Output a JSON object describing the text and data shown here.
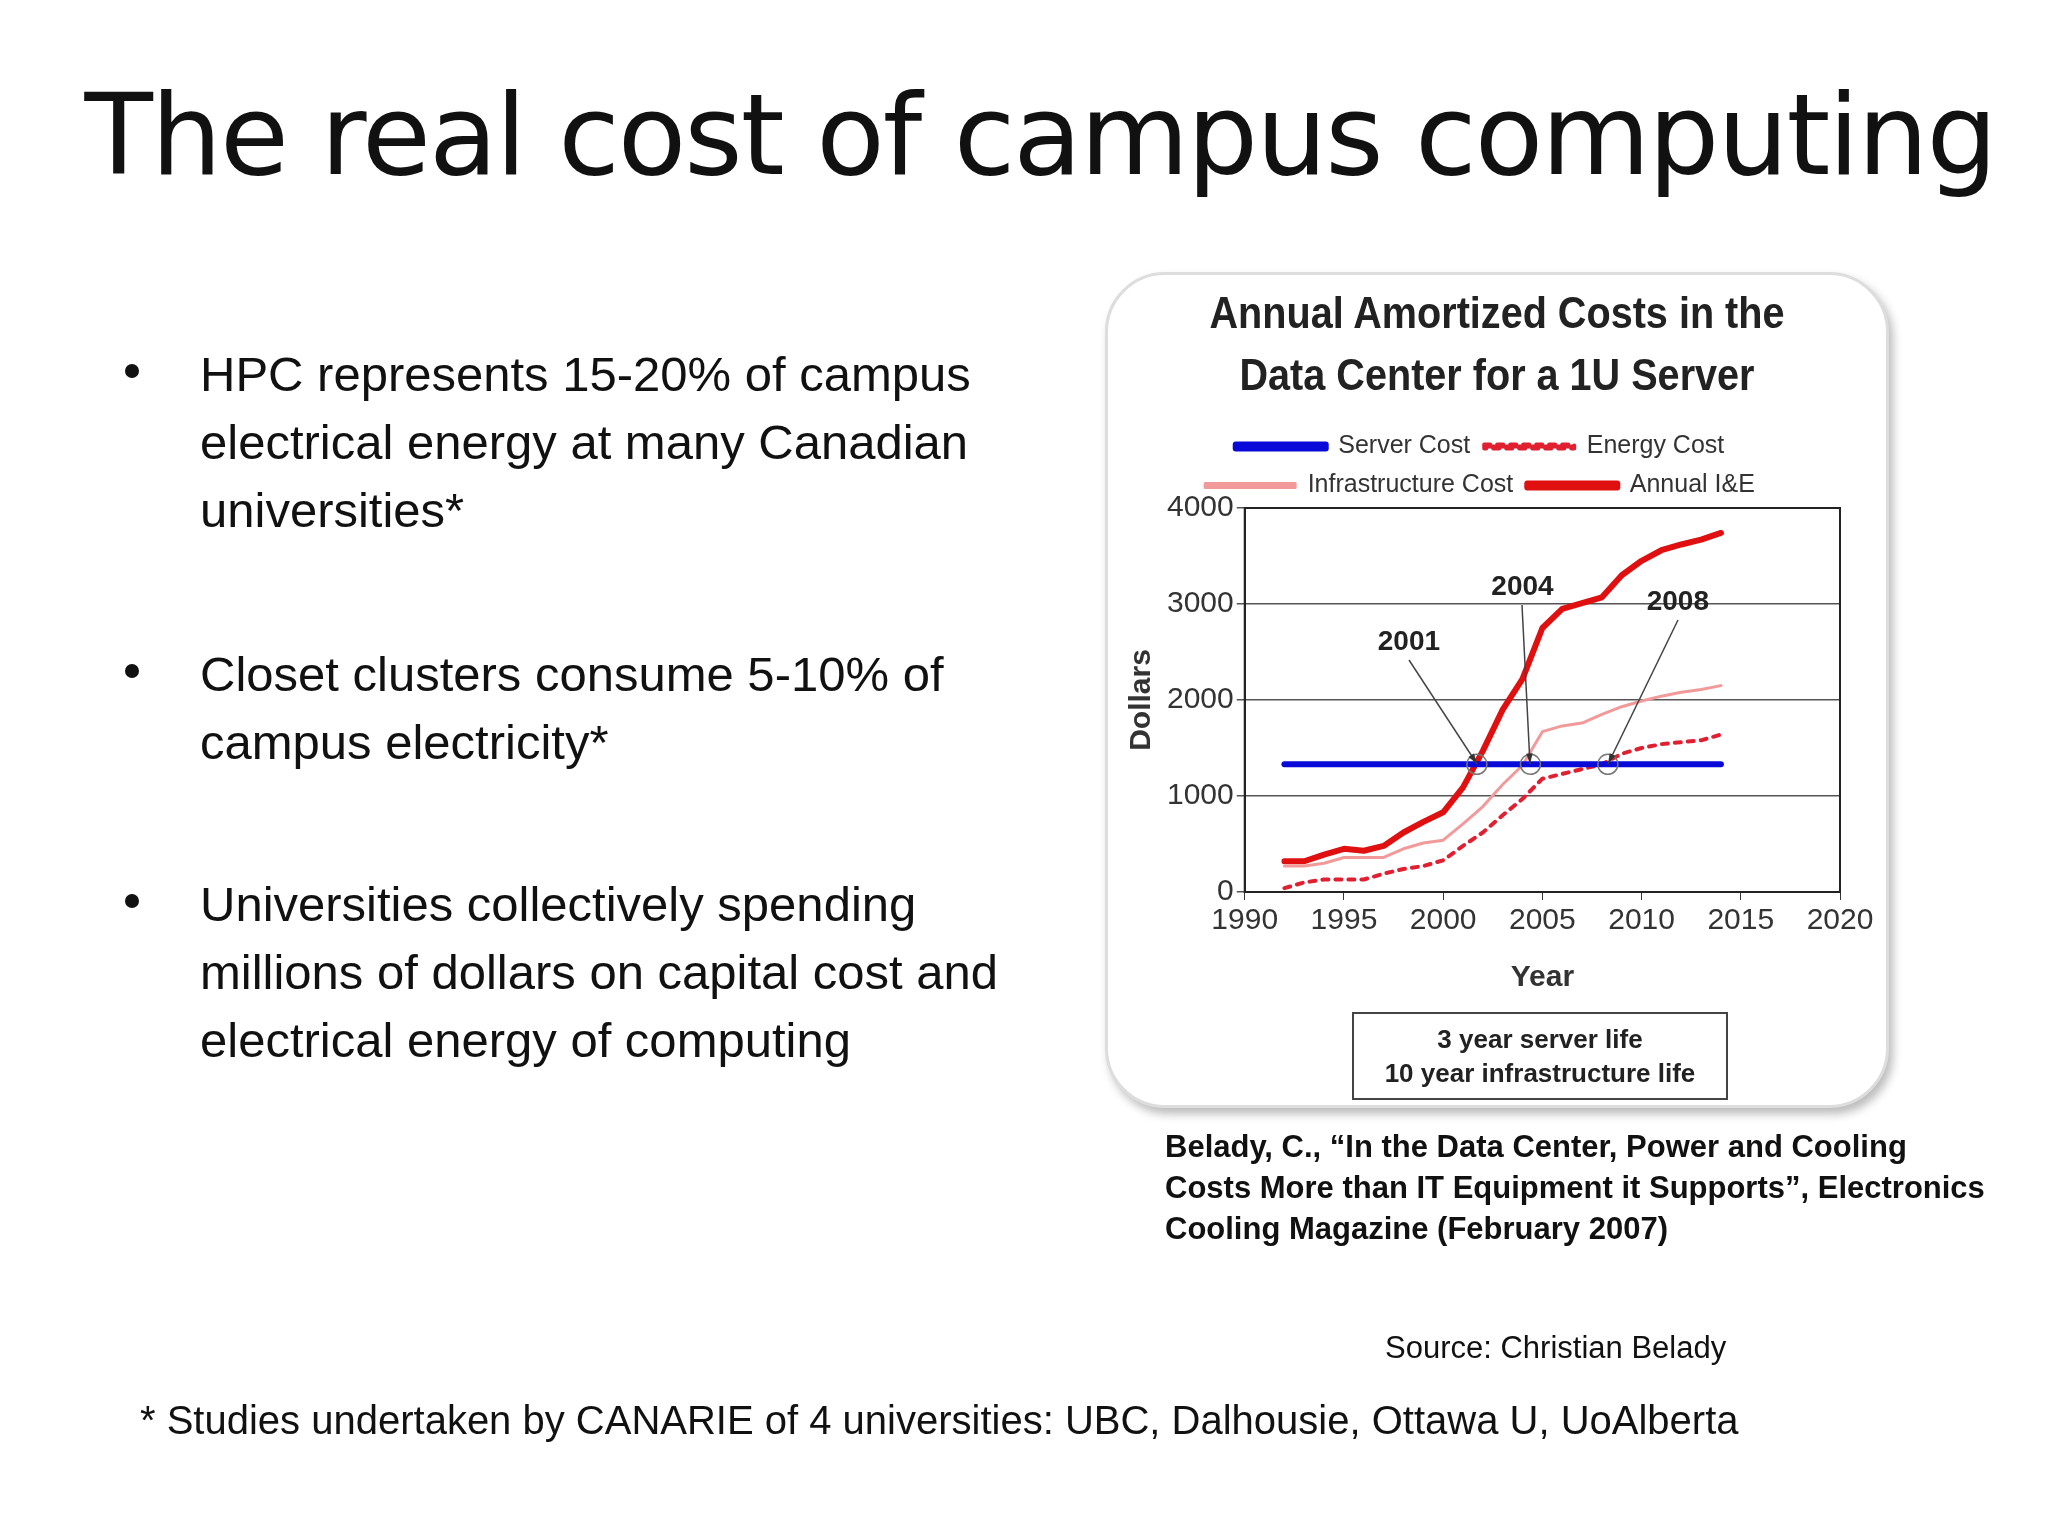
{
  "chart_data": {
    "type": "line",
    "title": "Annual Amortized Costs in the Data Center for a 1U Server",
    "xlabel": "Year",
    "ylabel": "Dollars",
    "x": [
      1992,
      1993,
      1994,
      1995,
      1996,
      1997,
      1998,
      1999,
      2000,
      2001,
      2002,
      2003,
      2004,
      2005,
      2006,
      2007,
      2008,
      2009,
      2010,
      2011,
      2012,
      2013,
      2014
    ],
    "series": [
      {
        "name": "Server Cost",
        "color": "#0a0ad8",
        "line_style": "solid",
        "values": [
          1330,
          1330,
          1330,
          1330,
          1330,
          1330,
          1330,
          1330,
          1330,
          1330,
          1330,
          1330,
          1330,
          1330,
          1330,
          1330,
          1330,
          1330,
          1330,
          1330,
          1330,
          1330,
          1330
        ]
      },
      {
        "name": "Energy Cost",
        "color": "#e02030",
        "line_style": "dotted",
        "values": [
          40,
          100,
          130,
          130,
          130,
          190,
          240,
          270,
          330,
          480,
          620,
          800,
          970,
          1180,
          1230,
          1280,
          1330,
          1440,
          1500,
          1540,
          1560,
          1580,
          1640
        ]
      },
      {
        "name": "Infrastructure Cost",
        "color": "#f29a9a",
        "line_style": "solid",
        "values": [
          270,
          270,
          300,
          360,
          360,
          360,
          450,
          510,
          540,
          710,
          890,
          1120,
          1320,
          1670,
          1730,
          1760,
          1850,
          1930,
          1990,
          2040,
          2080,
          2110,
          2150
        ]
      },
      {
        "name": "Annual I&E",
        "color": "#e01010",
        "line_style": "solid",
        "values": [
          320,
          320,
          390,
          450,
          430,
          480,
          620,
          730,
          830,
          1090,
          1470,
          1900,
          2220,
          2750,
          2950,
          3010,
          3070,
          3300,
          3450,
          3560,
          3620,
          3670,
          3740
        ]
      }
    ],
    "xlim": [
      1990,
      2020
    ],
    "xticks": [
      1990,
      1995,
      2000,
      2005,
      2010,
      2015,
      2020
    ],
    "ylim": [
      0,
      4000
    ],
    "yticks": [
      0,
      1000,
      2000,
      3000,
      4000
    ],
    "grid": "y",
    "legend": "top",
    "marker": "none",
    "annotations": [
      "The real cost of campus computing",
      "HPC represents 15-20% of campus electrical energy at many Canadian universities*",
      "Closet clusters consume 5-10% of campus electricity*",
      "Universities collectively spending millions of dollars on capital cost and electrical energy of computing",
      "3 year server life\n10 year infrastructure life",
      "Belady, C., “In the Data Center, Power and Cooling Costs More than IT Equipment it Supports”, Electronics Cooling Magazine (February 2007)",
      "Source: Christian Belady",
      "* Studies undertaken by CANARIE of 4 universities: UBC, Dalhousie, Ottawa U, UoAlberta",
      {
        "text": "2001",
        "x": 2001.7,
        "y": 1330
      },
      {
        "text": "2004",
        "x": 2004.4,
        "y": 1330
      },
      {
        "text": "2008",
        "x": 2008.3,
        "y": 1330
      }
    ]
  }
}
